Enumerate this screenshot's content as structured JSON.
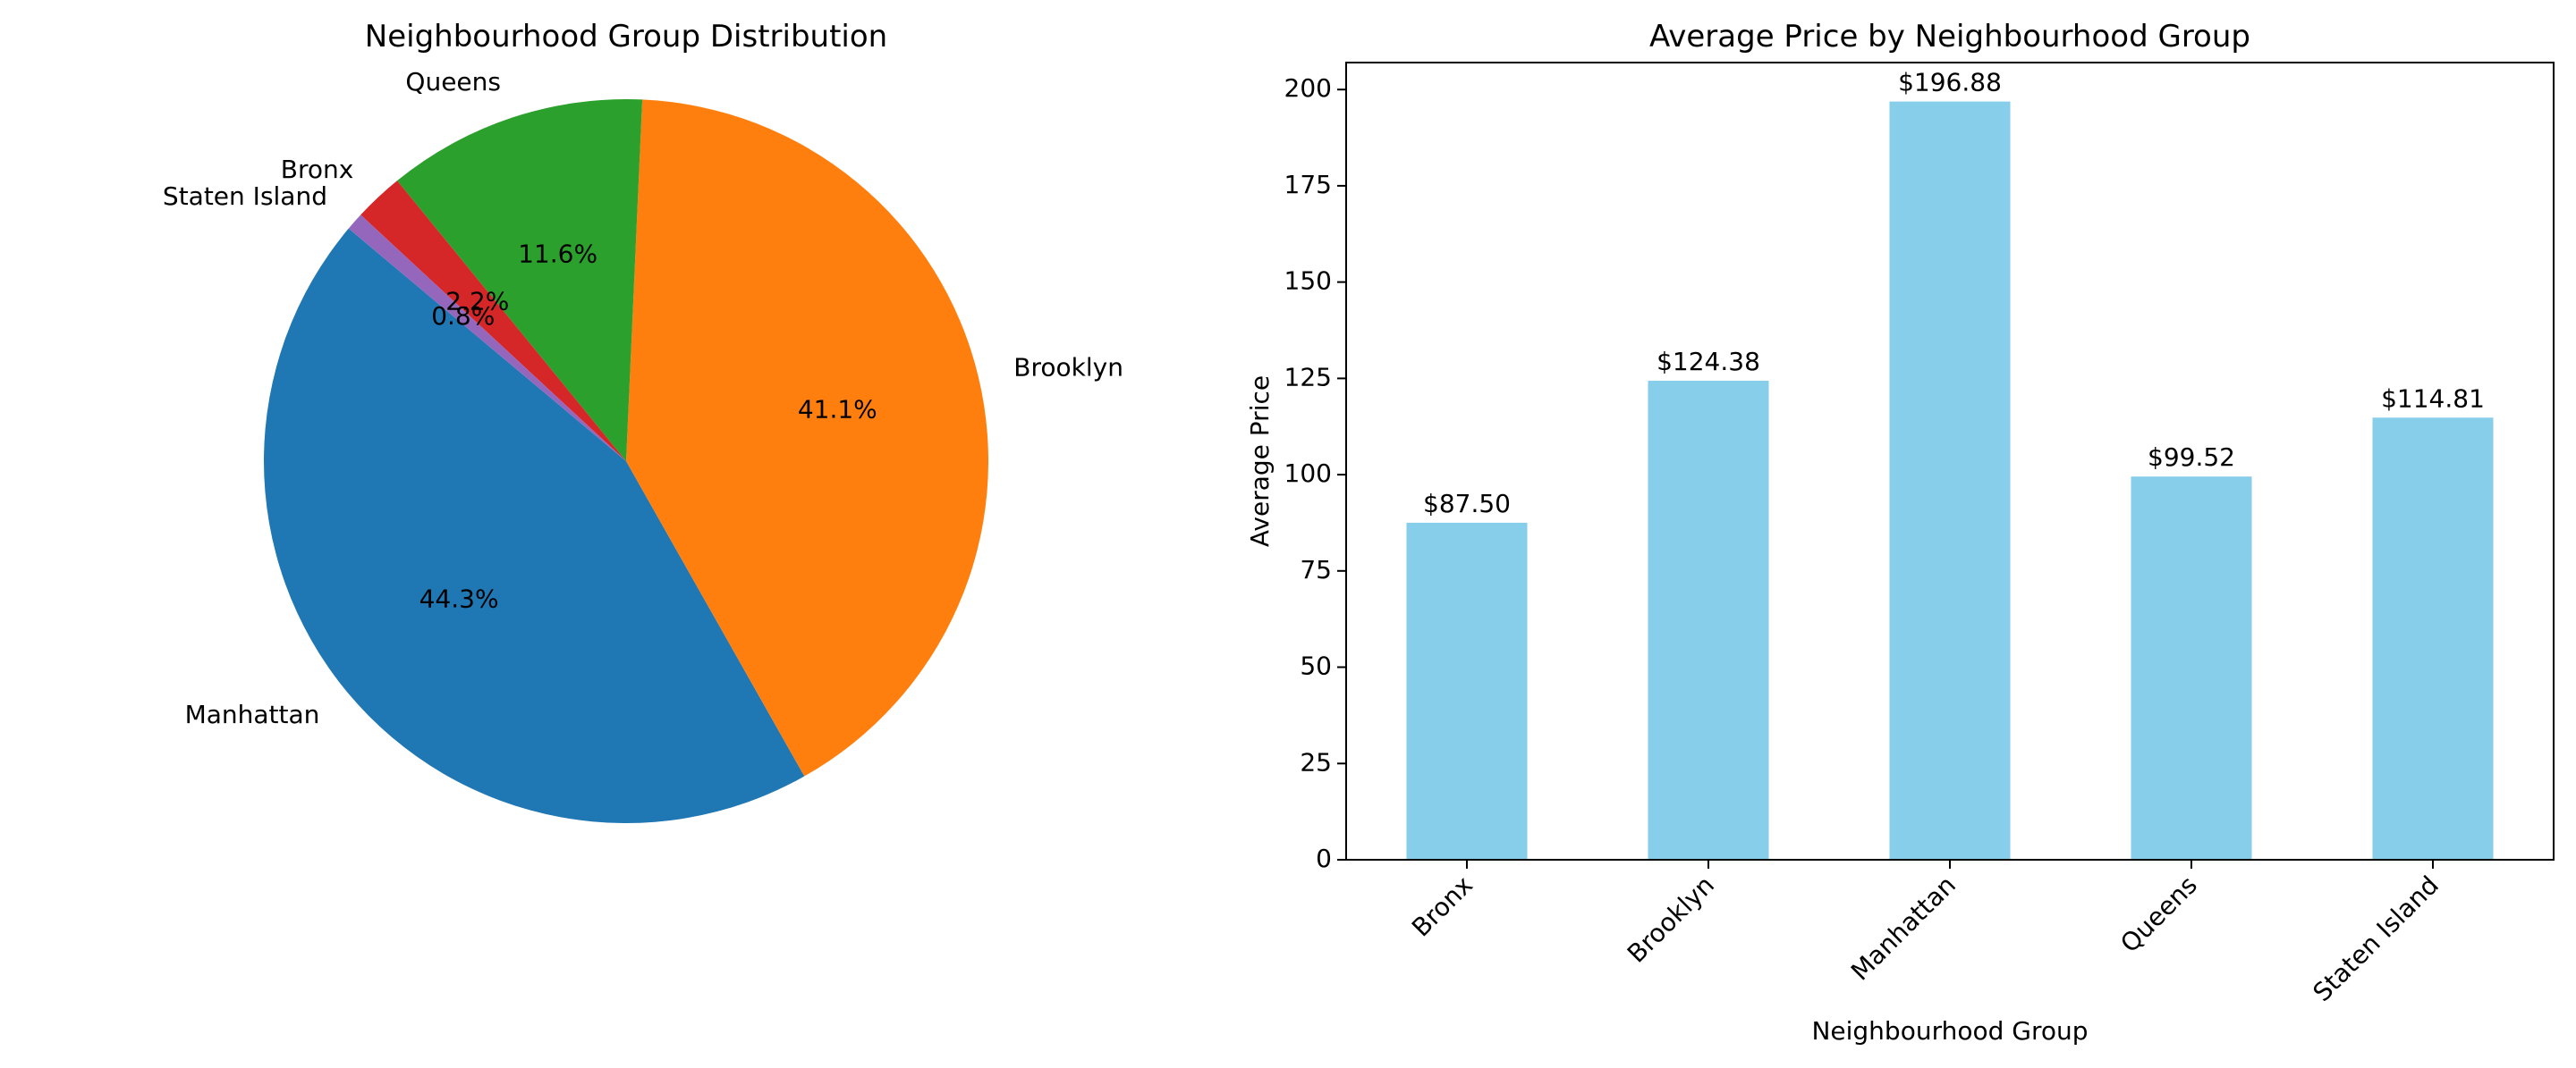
{
  "chart_data": [
    {
      "type": "pie",
      "title": "Neighbourhood Group Distribution",
      "slices": [
        {
          "label": "Manhattan",
          "percent": 44.3,
          "pct_label": "44.3%",
          "color": "#1f77b4"
        },
        {
          "label": "Brooklyn",
          "percent": 41.1,
          "pct_label": "41.1%",
          "color": "#ff7f0e"
        },
        {
          "label": "Queens",
          "percent": 11.6,
          "pct_label": "11.6%",
          "color": "#2ca02c"
        },
        {
          "label": "Bronx",
          "percent": 2.2,
          "pct_label": "2.2%",
          "color": "#d62728"
        },
        {
          "label": "Staten Island",
          "percent": 0.8,
          "pct_label": "0.8%",
          "color": "#9467bd"
        }
      ]
    },
    {
      "type": "bar",
      "title": "Average Price by Neighbourhood Group",
      "xlabel": "Neighbourhood Group",
      "ylabel": "Average Price",
      "ylim": [
        0,
        207
      ],
      "yticks": [
        0,
        25,
        50,
        75,
        100,
        125,
        150,
        175,
        200
      ],
      "categories": [
        "Bronx",
        "Brooklyn",
        "Manhattan",
        "Queens",
        "Staten Island"
      ],
      "values": [
        87.5,
        124.38,
        196.88,
        99.52,
        114.81
      ],
      "value_labels": [
        "$87.50",
        "$124.38",
        "$196.88",
        "$99.52",
        "$114.81"
      ],
      "bar_color": "#87ceeb",
      "grid": false
    }
  ]
}
